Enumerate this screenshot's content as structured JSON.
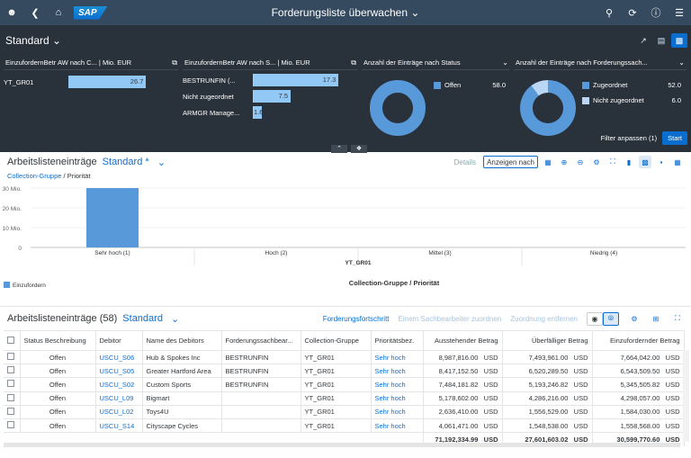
{
  "shell": {
    "title": "Forderungsliste überwachen",
    "logo": "SAP"
  },
  "header": {
    "variant": "Standard",
    "cards": [
      {
        "title": "EinzufordernBetr AW nach C... | Mio. EUR",
        "bars": [
          {
            "label": "YT_GR01",
            "value": "26.7",
            "fraction": 0.72
          }
        ]
      },
      {
        "title": "EinzufordernBetr AW nach S... | Mio. EUR",
        "bars": [
          {
            "label": "BESTRUNFIN (...",
            "value": "17.3",
            "fraction": 0.85
          },
          {
            "label": "Nicht zugeordnet",
            "value": "7.5",
            "fraction": 0.37
          },
          {
            "label": "ARMGR Manage...",
            "value": "1.6",
            "fraction": 0.08
          }
        ]
      },
      {
        "title": "Anzahl der Einträge nach Status",
        "legend": [
          {
            "label": "Offen",
            "value": "58.0",
            "color": "#5899da"
          }
        ],
        "donut": [
          {
            "value": 58,
            "color": "#5899da"
          }
        ]
      },
      {
        "title": "Anzahl der Einträge nach Forderungssach...",
        "legend": [
          {
            "label": "Zugeordnet",
            "value": "52.0",
            "color": "#5899da"
          },
          {
            "label": "Nicht zugeordnet",
            "value": "6.0",
            "color": "#b9d6f5"
          }
        ],
        "donut": [
          {
            "value": 52,
            "color": "#5899da"
          },
          {
            "value": 6,
            "color": "#b9d6f5"
          }
        ]
      }
    ],
    "filter_label": "Filter anpassen (1)",
    "start_label": "Start"
  },
  "chart_section": {
    "title": "Arbeitslisteneinträge",
    "variant": "Standard *",
    "details_label": "Details",
    "show_label": "Anzeigen nach",
    "breadcrumb_link": "Collection-Gruppe",
    "breadcrumb_rest": " / Priorität",
    "legend_label": "Einzufordern"
  },
  "chart_data": {
    "type": "bar",
    "categories": [
      "Sehr hoch (1)",
      "Hoch (2)",
      "Mittel (3)",
      "Niedrig (4)"
    ],
    "group_label": "YT_GR01",
    "xlabel": "Collection-Gruppe / Priorität",
    "ylim": [
      0,
      30
    ],
    "yticks": [
      {
        "value": 0,
        "label": "0"
      },
      {
        "value": 10,
        "label": "10 Mio."
      },
      {
        "value": 20,
        "label": "20 Mio."
      },
      {
        "value": 30,
        "label": "30 Mio."
      }
    ],
    "series": [
      {
        "name": "Einzufordern",
        "values": [
          30.6,
          0,
          0,
          0
        ],
        "color": "#5899da"
      }
    ]
  },
  "table_section": {
    "title": "Arbeitslisteneinträge (58)",
    "variant": "Standard",
    "actions": [
      "Forderungsfortschritt",
      "Einem Sachbearbeiter zuordnen",
      "Zuordnung entfernen"
    ],
    "columns": [
      "Status Beschreibung",
      "Debitor",
      "Name des Debitors",
      "Forderungssachbear...",
      "Collection-Gruppe",
      "Prioritätsbez.",
      "Ausstehender Betrag",
      "Überfälliger Betrag",
      "Einzufordernder Betrag"
    ],
    "rows": [
      {
        "status": "Offen",
        "debitor": "USCU_S06",
        "name": "Hub & Spokes Inc",
        "agent": "BESTRUNFIN",
        "group": "YT_GR01",
        "prio": "Sehr hoch",
        "outstanding": "8,987,816.00",
        "overdue": "7,493,961.00",
        "collect": "7,664,042.00",
        "cur": "USD"
      },
      {
        "status": "Offen",
        "debitor": "USCU_S05",
        "name": "Greater Hartford Area",
        "agent": "BESTRUNFIN",
        "group": "YT_GR01",
        "prio": "Sehr hoch",
        "outstanding": "8,417,152.50",
        "overdue": "6,520,289.50",
        "collect": "6,543,509.50",
        "cur": "USD"
      },
      {
        "status": "Offen",
        "debitor": "USCU_S02",
        "name": "Custom Sports",
        "agent": "BESTRUNFIN",
        "group": "YT_GR01",
        "prio": "Sehr hoch",
        "outstanding": "7,484,181.82",
        "overdue": "5,193,246.82",
        "collect": "5,345,505.82",
        "cur": "USD"
      },
      {
        "status": "Offen",
        "debitor": "USCU_L09",
        "name": "Bigmart",
        "agent": "",
        "group": "YT_GR01",
        "prio": "Sehr hoch",
        "outstanding": "5,178,602.00",
        "overdue": "4,286,216.00",
        "collect": "4,298,057.00",
        "cur": "USD"
      },
      {
        "status": "Offen",
        "debitor": "USCU_L02",
        "name": "Toys4U",
        "agent": "",
        "group": "YT_GR01",
        "prio": "Sehr hoch",
        "outstanding": "2,636,410.00",
        "overdue": "1,556,529.00",
        "collect": "1,584,030.00",
        "cur": "USD"
      },
      {
        "status": "Offen",
        "debitor": "USCU_S14",
        "name": "Cityscape Cycles",
        "agent": "",
        "group": "YT_GR01",
        "prio": "Sehr hoch",
        "outstanding": "4,061,471.00",
        "overdue": "1,548,538.00",
        "collect": "1,558,568.00",
        "cur": "USD"
      }
    ],
    "totals": {
      "outstanding": "71,192,334.99",
      "overdue": "27,601,603.02",
      "collect": "30,599,770.60",
      "cur": "USD"
    }
  }
}
